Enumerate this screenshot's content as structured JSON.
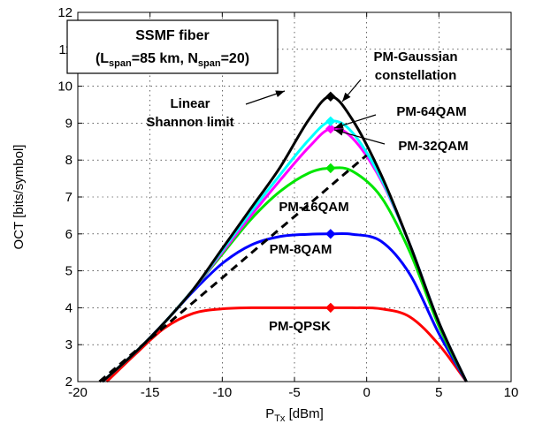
{
  "chart_data": {
    "type": "line",
    "xlabel_main": "P",
    "xlabel_sub": "Tx",
    "xlabel_unit": " [dBm]",
    "ylabel": "OCT [bits/symbol]",
    "xlim": [
      -20,
      10
    ],
    "ylim": [
      2,
      12
    ],
    "xticks": [
      -20,
      -15,
      -10,
      -5,
      0,
      5,
      10
    ],
    "yticks": [
      2,
      3,
      4,
      5,
      6,
      7,
      8,
      9,
      10,
      11,
      12
    ],
    "grid": true,
    "box": {
      "line1": "SSMF fiber",
      "line2_parts": [
        {
          "t": "(L",
          "sub": false
        },
        {
          "t": "span",
          "sub": true
        },
        {
          "t": "=85 km, N",
          "sub": false
        },
        {
          "t": "span",
          "sub": true
        },
        {
          "t": "=20)",
          "sub": false
        }
      ]
    },
    "series": [
      {
        "name": "Linear Shannon limit",
        "label": "Linear\nShannon limit",
        "color": "#000000",
        "dashed": true,
        "x": [
          -18.5,
          -15,
          -12,
          -10,
          -8,
          -6,
          -4,
          -2,
          0
        ],
        "y": [
          2.0,
          3.16,
          4.15,
          4.81,
          5.48,
          6.14,
          6.8,
          7.47,
          8.13
        ]
      },
      {
        "name": "PM-Gaussian constellation",
        "label": "PM-Gaussian\nconstellation",
        "color": "#000000",
        "x": [
          -18.3,
          -16,
          -14,
          -12,
          -10,
          -8,
          -6,
          -4,
          -2.5,
          -1,
          1,
          3,
          5,
          6.9
        ],
        "y": [
          2.0,
          2.8,
          3.6,
          4.5,
          5.6,
          6.7,
          7.8,
          9.1,
          9.72,
          9.1,
          7.6,
          5.7,
          3.6,
          2.0
        ],
        "marker": {
          "x": -2.5,
          "y": 9.72
        }
      },
      {
        "name": "PM-64QAM",
        "label": "PM-64QAM",
        "color": "#00ffff",
        "x": [
          -18.3,
          -16,
          -14,
          -12,
          -10,
          -8,
          -6,
          -4,
          -2.5,
          -1,
          1,
          3,
          5,
          6.9
        ],
        "y": [
          2.0,
          2.8,
          3.6,
          4.5,
          5.55,
          6.6,
          7.6,
          8.55,
          9.05,
          8.75,
          7.5,
          5.7,
          3.6,
          2.0
        ],
        "marker": {
          "x": -2.5,
          "y": 9.05
        }
      },
      {
        "name": "PM-32QAM",
        "label": "PM-32QAM",
        "color": "#ff00ff",
        "x": [
          -18.3,
          -16,
          -14,
          -12,
          -10,
          -8,
          -6,
          -4,
          -2.5,
          -1,
          1,
          3,
          5,
          6.9
        ],
        "y": [
          2.0,
          2.8,
          3.6,
          4.5,
          5.5,
          6.5,
          7.45,
          8.35,
          8.85,
          8.6,
          7.45,
          5.7,
          3.6,
          2.0
        ],
        "marker": {
          "x": -2.5,
          "y": 8.85
        }
      },
      {
        "name": "PM-16QAM",
        "label": "PM-16QAM",
        "color": "#00e600",
        "x": [
          -18.3,
          -16,
          -14,
          -12,
          -10,
          -8,
          -6,
          -4,
          -2.5,
          -1,
          1,
          3,
          5,
          6.9
        ],
        "y": [
          2.0,
          2.8,
          3.6,
          4.5,
          5.45,
          6.4,
          7.15,
          7.65,
          7.78,
          7.7,
          7.0,
          5.5,
          3.5,
          2.0
        ],
        "marker": {
          "x": -2.5,
          "y": 7.78
        }
      },
      {
        "name": "PM-8QAM",
        "label": "PM-8QAM",
        "color": "#0000ff",
        "x": [
          -18.3,
          -16,
          -14,
          -12,
          -10,
          -8,
          -6,
          -4,
          -2.5,
          -1,
          1,
          3,
          5,
          6.9
        ],
        "y": [
          2.0,
          2.8,
          3.6,
          4.45,
          5.2,
          5.7,
          5.93,
          5.99,
          6.0,
          5.99,
          5.8,
          4.9,
          3.3,
          2.0
        ],
        "marker": {
          "x": -2.5,
          "y": 6.0
        }
      },
      {
        "name": "PM-QPSK",
        "label": "PM-QPSK",
        "color": "#ff0000",
        "x": [
          -18.0,
          -16,
          -14,
          -12,
          -10,
          -8,
          -6,
          -4,
          -2.5,
          -1,
          1,
          3,
          5,
          6.9
        ],
        "y": [
          2.0,
          2.75,
          3.45,
          3.85,
          3.97,
          4.0,
          4.0,
          4.0,
          4.0,
          4.0,
          3.97,
          3.75,
          3.0,
          2.0
        ],
        "marker": {
          "x": -2.5,
          "y": 4.0
        }
      }
    ]
  }
}
